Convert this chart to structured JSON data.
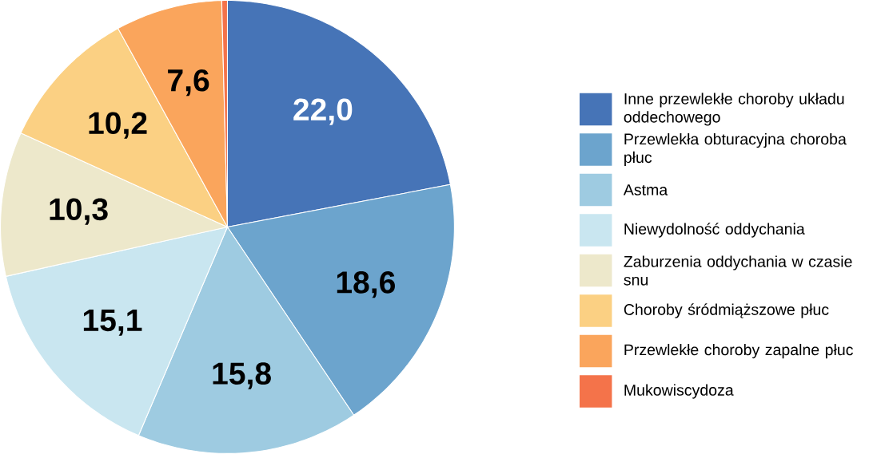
{
  "chart_data": {
    "type": "pie",
    "categories": [
      "Inne przewlekłe choroby układu oddechowego",
      "Przewlekła obturacyjna choroba płuc",
      "Astma",
      "Niewydolność oddychania",
      "Zaburzenia oddychania w czasie snu",
      "Choroby śródmiąższowe płuc",
      "Przewlekłe choroby zapalne płuc",
      "Mukowiscydoza"
    ],
    "values": [
      22.0,
      18.6,
      15.8,
      15.1,
      10.3,
      10.2,
      7.6,
      0.4
    ],
    "value_labels": [
      "22,0",
      "18,6",
      "15,8",
      "15,1",
      "10,3",
      "10,2",
      "7,6",
      null
    ],
    "colors": [
      "#4674b7",
      "#6ca4cd",
      "#9ecbe1",
      "#c9e6f0",
      "#ede8cb",
      "#fbd083",
      "#faa55c",
      "#f4734a"
    ],
    "legend": "right"
  }
}
